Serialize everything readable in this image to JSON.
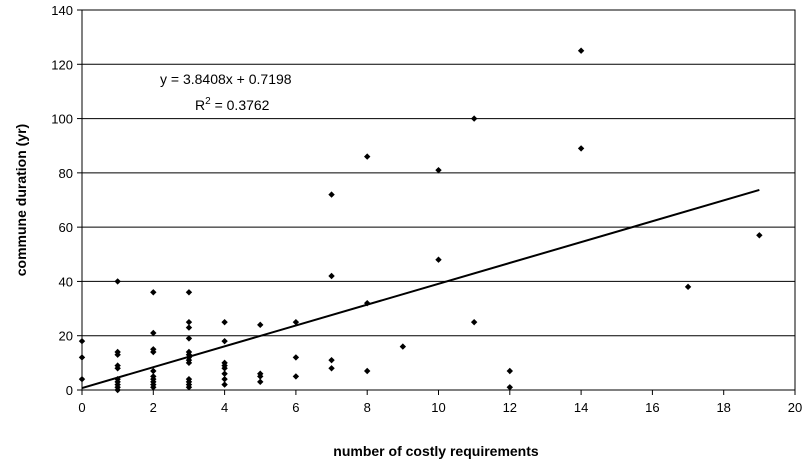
{
  "chart_data": {
    "type": "scatter",
    "title": "",
    "xlabel": "number of costly requirements",
    "ylabel": "commune duration (yr)",
    "xlim": [
      0,
      20
    ],
    "ylim": [
      0,
      140
    ],
    "xticks": [
      0,
      2,
      4,
      6,
      8,
      10,
      12,
      14,
      16,
      18,
      20
    ],
    "yticks": [
      0,
      20,
      40,
      60,
      80,
      100,
      120,
      140
    ],
    "grid": "horizontal",
    "legend": "none",
    "marker_color": "#000000",
    "points": [
      {
        "x": 0,
        "y": 18
      },
      {
        "x": 0,
        "y": 12
      },
      {
        "x": 0,
        "y": 4
      },
      {
        "x": 1,
        "y": 40
      },
      {
        "x": 1,
        "y": 14
      },
      {
        "x": 1,
        "y": 13
      },
      {
        "x": 1,
        "y": 9
      },
      {
        "x": 1,
        "y": 8
      },
      {
        "x": 1,
        "y": 4
      },
      {
        "x": 1,
        "y": 3
      },
      {
        "x": 1,
        "y": 2
      },
      {
        "x": 1,
        "y": 1
      },
      {
        "x": 1,
        "y": 0
      },
      {
        "x": 2,
        "y": 36
      },
      {
        "x": 2,
        "y": 21
      },
      {
        "x": 2,
        "y": 15
      },
      {
        "x": 2,
        "y": 14
      },
      {
        "x": 2,
        "y": 7
      },
      {
        "x": 2,
        "y": 5
      },
      {
        "x": 2,
        "y": 4
      },
      {
        "x": 2,
        "y": 3
      },
      {
        "x": 2,
        "y": 2
      },
      {
        "x": 2,
        "y": 1
      },
      {
        "x": 3,
        "y": 36
      },
      {
        "x": 3,
        "y": 25
      },
      {
        "x": 3,
        "y": 23
      },
      {
        "x": 3,
        "y": 19
      },
      {
        "x": 3,
        "y": 14
      },
      {
        "x": 3,
        "y": 13
      },
      {
        "x": 3,
        "y": 12
      },
      {
        "x": 3,
        "y": 11
      },
      {
        "x": 3,
        "y": 10
      },
      {
        "x": 3,
        "y": 4
      },
      {
        "x": 3,
        "y": 3
      },
      {
        "x": 3,
        "y": 2
      },
      {
        "x": 3,
        "y": 1
      },
      {
        "x": 4,
        "y": 25
      },
      {
        "x": 4,
        "y": 18
      },
      {
        "x": 4,
        "y": 10
      },
      {
        "x": 4,
        "y": 9
      },
      {
        "x": 4,
        "y": 8
      },
      {
        "x": 4,
        "y": 6
      },
      {
        "x": 4,
        "y": 4
      },
      {
        "x": 4,
        "y": 2
      },
      {
        "x": 5,
        "y": 24
      },
      {
        "x": 5,
        "y": 6
      },
      {
        "x": 5,
        "y": 5
      },
      {
        "x": 5,
        "y": 3
      },
      {
        "x": 6,
        "y": 25
      },
      {
        "x": 6,
        "y": 12
      },
      {
        "x": 6,
        "y": 5
      },
      {
        "x": 7,
        "y": 72
      },
      {
        "x": 7,
        "y": 42
      },
      {
        "x": 7,
        "y": 11
      },
      {
        "x": 7,
        "y": 8
      },
      {
        "x": 8,
        "y": 86
      },
      {
        "x": 8,
        "y": 32
      },
      {
        "x": 8,
        "y": 7
      },
      {
        "x": 9,
        "y": 16
      },
      {
        "x": 10,
        "y": 81
      },
      {
        "x": 10,
        "y": 48
      },
      {
        "x": 11,
        "y": 100
      },
      {
        "x": 11,
        "y": 25
      },
      {
        "x": 12,
        "y": 7
      },
      {
        "x": 12,
        "y": 1
      },
      {
        "x": 14,
        "y": 125
      },
      {
        "x": 14,
        "y": 89
      },
      {
        "x": 17,
        "y": 38
      },
      {
        "x": 19,
        "y": 57
      }
    ],
    "trendline": {
      "slope": 3.8408,
      "intercept": 0.7198,
      "x_range": [
        0,
        19
      ]
    },
    "annotations": {
      "equation": "y = 3.8408x + 0.7198",
      "r2_prefix": "R",
      "r2_superscript": "2",
      "r2_value": " = 0.3762"
    }
  }
}
